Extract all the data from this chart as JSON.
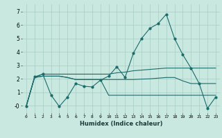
{
  "xlabel": "Humidex (Indice chaleur)",
  "bg_color": "#c8e8e0",
  "grid_color": "#a8ccc4",
  "line_color": "#1a6b6b",
  "x": [
    0,
    1,
    2,
    3,
    4,
    5,
    6,
    7,
    8,
    9,
    10,
    11,
    12,
    13,
    14,
    15,
    16,
    17,
    18,
    19,
    20,
    21,
    22,
    23
  ],
  "line_main": [
    -0.05,
    2.15,
    2.35,
    0.8,
    -0.05,
    0.65,
    1.65,
    1.45,
    1.4,
    1.9,
    2.2,
    2.9,
    2.1,
    3.9,
    5.0,
    5.75,
    6.1,
    6.8,
    5.0,
    3.8,
    2.8,
    1.65,
    -0.2,
    0.65
  ],
  "line_upper": [
    0.0,
    2.1,
    2.35,
    2.35,
    2.35,
    2.35,
    2.35,
    2.35,
    2.35,
    2.35,
    2.35,
    2.45,
    2.5,
    2.6,
    2.65,
    2.7,
    2.75,
    2.8,
    2.8,
    2.8,
    2.8,
    2.8,
    2.8,
    2.8
  ],
  "line_mid": [
    0.0,
    2.1,
    2.2,
    2.2,
    2.2,
    2.1,
    1.95,
    1.95,
    1.95,
    1.95,
    1.95,
    1.95,
    1.95,
    1.95,
    1.98,
    2.0,
    2.05,
    2.1,
    2.1,
    1.85,
    1.65,
    1.65,
    1.65,
    1.65
  ],
  "line_lower": [
    0.0,
    2.1,
    2.2,
    2.2,
    2.2,
    2.1,
    1.95,
    1.95,
    1.95,
    1.95,
    0.78,
    0.78,
    0.78,
    0.78,
    0.78,
    0.78,
    0.78,
    0.78,
    0.78,
    0.78,
    0.78,
    0.78,
    0.78,
    0.78
  ],
  "ylim": [
    -0.55,
    7.55
  ],
  "xlim": [
    -0.5,
    23.5
  ],
  "yticks": [
    0,
    1,
    2,
    3,
    4,
    5,
    6,
    7
  ],
  "ytick_labels": [
    "-0",
    "1",
    "2",
    "3",
    "4",
    "5",
    "6",
    "7"
  ],
  "xticks": [
    0,
    1,
    2,
    3,
    4,
    5,
    6,
    7,
    8,
    9,
    10,
    11,
    12,
    13,
    14,
    15,
    16,
    17,
    18,
    19,
    20,
    21,
    22,
    23
  ],
  "xtick_labels": [
    "0",
    "1",
    "2",
    "3",
    "4",
    "5",
    "6",
    "7",
    "8",
    "9",
    "10",
    "11",
    "12",
    "13",
    "14",
    "15",
    "16",
    "17",
    "18",
    "19",
    "20",
    "21",
    "22",
    "23"
  ]
}
